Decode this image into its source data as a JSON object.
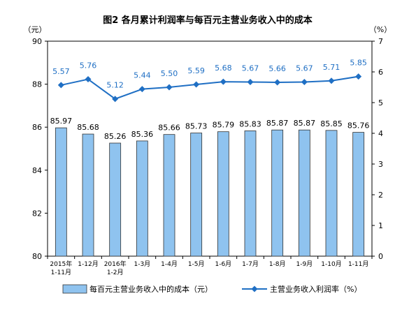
{
  "chart_data": {
    "type": "bar+line",
    "title": "图2  各月累计利润率与每百元主营业务收入中的成本",
    "left_axis_unit": "（元）",
    "right_axis_unit": "（%）",
    "categories": [
      [
        "2015年",
        "1-11月"
      ],
      [
        "1-12月"
      ],
      [
        "2016年",
        "1-2月"
      ],
      [
        "1-3月"
      ],
      [
        "1-4月"
      ],
      [
        "1-5月"
      ],
      [
        "1-6月"
      ],
      [
        "1-7月"
      ],
      [
        "1-8月"
      ],
      [
        "1-9月"
      ],
      [
        "1-10月"
      ],
      [
        "1-11月"
      ]
    ],
    "left_ylim": [
      80,
      90
    ],
    "left_yticks": [
      80,
      82,
      84,
      86,
      88,
      90
    ],
    "right_ylim": [
      0,
      7
    ],
    "right_yticks": [
      0,
      1,
      2,
      3,
      4,
      5,
      6,
      7
    ],
    "grid": false,
    "legend_position": "bottom",
    "series": [
      {
        "name": "每百元主营业务收入中的成本（元）",
        "type": "bar",
        "axis": "left",
        "color": "#8fc3ef",
        "values": [
          85.97,
          85.68,
          85.26,
          85.36,
          85.66,
          85.73,
          85.79,
          85.83,
          85.87,
          85.87,
          85.85,
          85.76
        ],
        "labels": [
          "85.97",
          "85.68",
          "85.26",
          "85.36",
          "85.66",
          "85.73",
          "85.79",
          "85.83",
          "85.87",
          "85.87",
          "85.85",
          "85.76"
        ]
      },
      {
        "name": "主营业务收入利润率（%）",
        "type": "line",
        "axis": "right",
        "color": "#1f6fc4",
        "values": [
          5.57,
          5.76,
          5.12,
          5.44,
          5.5,
          5.59,
          5.68,
          5.67,
          5.66,
          5.67,
          5.71,
          5.85
        ],
        "labels": [
          "5.57",
          "5.76",
          "5.12",
          "5.44",
          "5.50",
          "5.59",
          "5.68",
          "5.67",
          "5.66",
          "5.67",
          "5.71",
          "5.85"
        ]
      }
    ]
  }
}
